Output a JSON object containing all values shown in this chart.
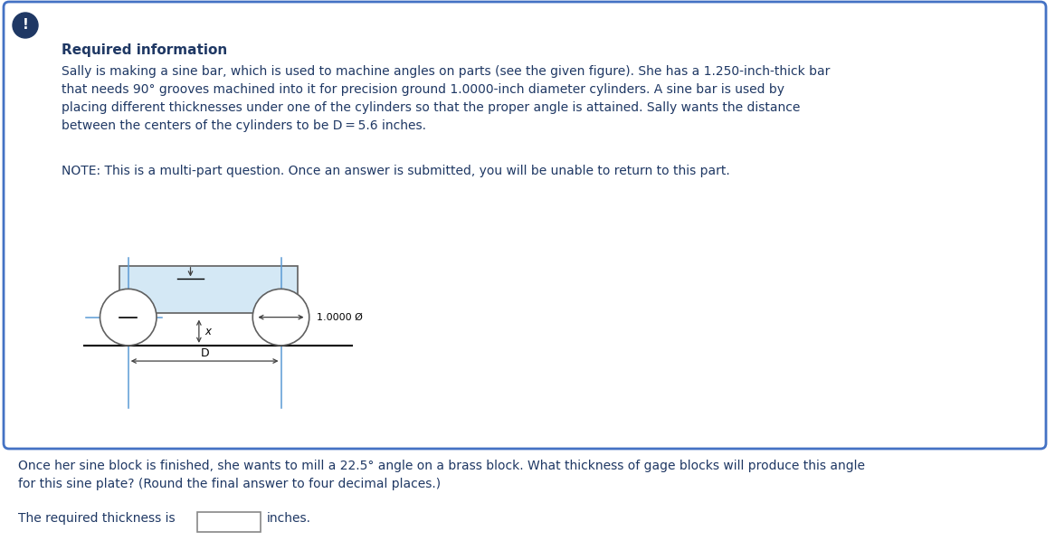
{
  "bg_color": "#ffffff",
  "border_color": "#4472c4",
  "header_color": "#1f3864",
  "body_text_color": "#1f3864",
  "required_info_text": "Required information",
  "paragraph1": "Sally is making a sine bar, which is used to machine angles on parts (see the given figure). She has a 1.250-inch-thick bar\nthat needs 90° grooves machined into it for precision ground 1.0000-inch diameter cylinders. A sine bar is used by\nplacing different thicknesses under one of the cylinders so that the proper angle is attained. Sally wants the distance\nbetween the centers of the cylinders to be D = 5.6 inches.",
  "note_text": "NOTE: This is a multi-part question. Once an answer is submitted, you will be unable to return to this part.",
  "question_text": "Once her sine block is finished, she wants to mill a 22.5° angle on a brass block. What thickness of gage blocks will produce this angle\nfor this sine plate? (Round the final answer to four decimal places.)",
  "answer_text": "The required thickness is",
  "answer_suffix": "inches.",
  "diameter_label": "1.0000 Ø",
  "D_label": "D",
  "x_label": "x",
  "exclamation": "!",
  "bar_fill": "#d4e8f5",
  "bar_stroke": "#606060",
  "cylinder_stroke": "#606060",
  "center_line_color": "#5b9bd5",
  "dim_line_color": "#404040",
  "excl_color": "#1f3864"
}
